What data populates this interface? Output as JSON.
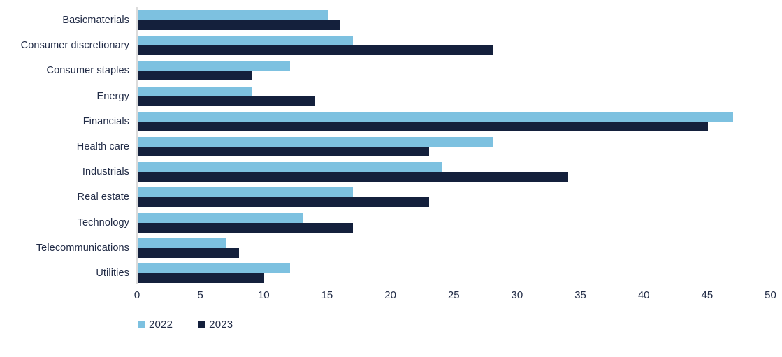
{
  "chart_data": {
    "type": "bar",
    "orientation": "horizontal",
    "title": "",
    "xlabel": "",
    "ylabel": "",
    "categories": [
      "Basicmaterials",
      "Consumer discretionary",
      "Consumer staples",
      "Energy",
      "Financials",
      "Health care",
      "Industrials",
      "Real estate",
      "Technology",
      "Telecommunications",
      "Utilities"
    ],
    "series": [
      {
        "name": "2022",
        "color": "#7dc1e0",
        "values": [
          15,
          17,
          12,
          9,
          47,
          28,
          24,
          17,
          13,
          7,
          12
        ]
      },
      {
        "name": "2023",
        "color": "#14203c",
        "values": [
          16,
          28,
          9,
          14,
          45,
          23,
          34,
          23,
          17,
          8,
          10
        ]
      }
    ],
    "xlim": [
      0,
      50
    ],
    "xticks": [
      0,
      5,
      10,
      15,
      20,
      25,
      30,
      35,
      40,
      45,
      50
    ],
    "grid": false,
    "legend_position": "bottom-left",
    "axis_line_color": "#dcdcdc",
    "text_color": "#212b46"
  }
}
